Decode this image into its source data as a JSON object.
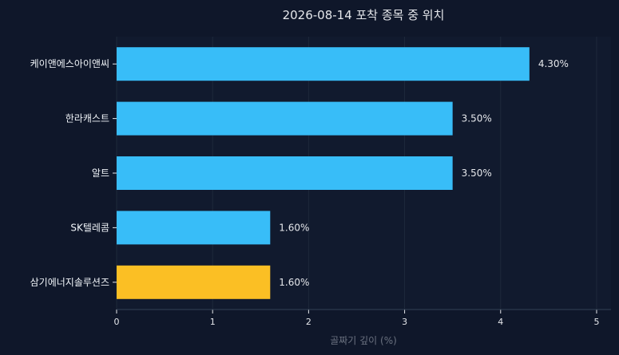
{
  "chart_data": {
    "type": "bar",
    "orientation": "horizontal",
    "title": "2026-08-14 포착 종목 중 위치",
    "xlabel": "골짜기 깊이 (%)",
    "ylabel": "",
    "xlim": [
      0,
      5.15
    ],
    "xticks": [
      "0",
      "1",
      "2",
      "3",
      "4",
      "5"
    ],
    "grid": true,
    "categories": [
      "케이앤에스아이앤씨",
      "한라캐스트",
      "알트",
      "SK텔레콤",
      "삼기에너지솔루션즈"
    ],
    "values": [
      4.3,
      3.5,
      3.5,
      1.6,
      1.6
    ],
    "value_labels": [
      "4.30%",
      "3.50%",
      "3.50%",
      "1.60%",
      "1.60%"
    ],
    "colors": [
      "#38bdf8",
      "#38bdf8",
      "#38bdf8",
      "#38bdf8",
      "#fbbf24"
    ],
    "background": "#0f172a",
    "plot_background": "#111a2e"
  }
}
